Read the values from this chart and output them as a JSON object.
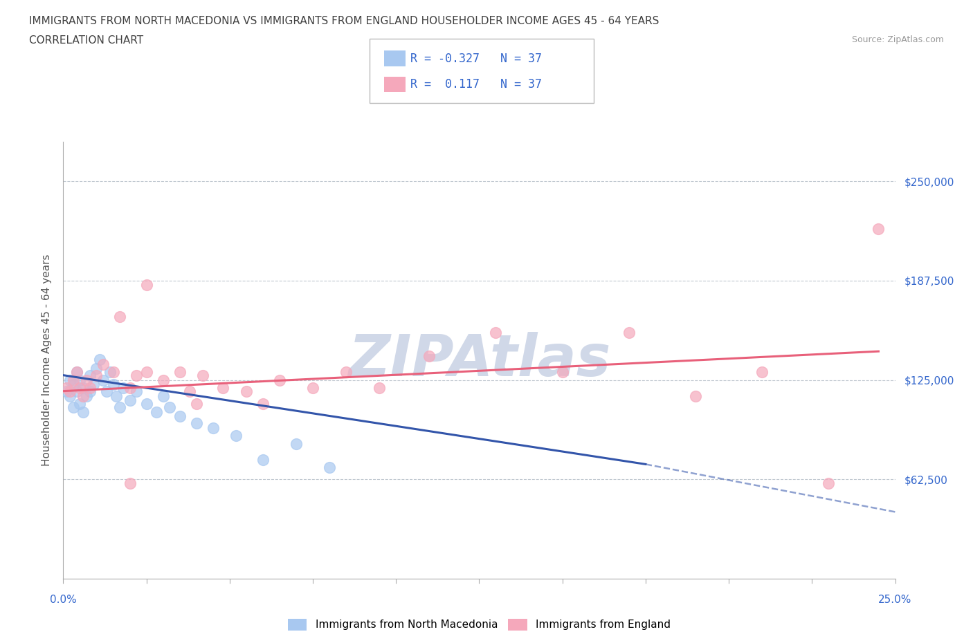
{
  "title_line1": "IMMIGRANTS FROM NORTH MACEDONIA VS IMMIGRANTS FROM ENGLAND HOUSEHOLDER INCOME AGES 45 - 64 YEARS",
  "title_line2": "CORRELATION CHART",
  "source_text": "Source: ZipAtlas.com",
  "ylabel": "Householder Income Ages 45 - 64 years",
  "xlim": [
    0.0,
    0.25
  ],
  "ylim": [
    0,
    275000
  ],
  "yticks": [
    0,
    62500,
    125000,
    187500,
    250000
  ],
  "ytick_labels": [
    "",
    "$62,500",
    "$125,000",
    "$187,500",
    "$250,000"
  ],
  "gridline_y": [
    62500,
    125000,
    187500,
    250000
  ],
  "blue_scatter_x": [
    0.001,
    0.002,
    0.002,
    0.003,
    0.003,
    0.004,
    0.004,
    0.005,
    0.005,
    0.006,
    0.006,
    0.007,
    0.008,
    0.008,
    0.009,
    0.01,
    0.011,
    0.012,
    0.013,
    0.014,
    0.015,
    0.016,
    0.017,
    0.018,
    0.02,
    0.022,
    0.025,
    0.028,
    0.03,
    0.032,
    0.035,
    0.04,
    0.045,
    0.052,
    0.06,
    0.07,
    0.08
  ],
  "blue_scatter_y": [
    118000,
    125000,
    115000,
    122000,
    108000,
    130000,
    118000,
    125000,
    110000,
    120000,
    105000,
    115000,
    128000,
    118000,
    122000,
    132000,
    138000,
    125000,
    118000,
    130000,
    122000,
    115000,
    108000,
    120000,
    112000,
    118000,
    110000,
    105000,
    115000,
    108000,
    102000,
    98000,
    95000,
    90000,
    75000,
    85000,
    70000
  ],
  "pink_scatter_x": [
    0.001,
    0.002,
    0.003,
    0.004,
    0.005,
    0.006,
    0.007,
    0.008,
    0.01,
    0.012,
    0.015,
    0.017,
    0.02,
    0.022,
    0.025,
    0.03,
    0.035,
    0.038,
    0.042,
    0.048,
    0.055,
    0.065,
    0.075,
    0.085,
    0.095,
    0.11,
    0.13,
    0.15,
    0.17,
    0.19,
    0.21,
    0.23,
    0.245,
    0.025,
    0.04,
    0.06,
    0.02
  ],
  "pink_scatter_y": [
    120000,
    118000,
    125000,
    130000,
    120000,
    115000,
    125000,
    120000,
    128000,
    135000,
    130000,
    165000,
    120000,
    128000,
    130000,
    125000,
    130000,
    118000,
    128000,
    120000,
    118000,
    125000,
    120000,
    130000,
    120000,
    140000,
    155000,
    130000,
    155000,
    115000,
    130000,
    60000,
    220000,
    185000,
    110000,
    110000,
    60000
  ],
  "blue_line_x": [
    0.0,
    0.175
  ],
  "blue_line_y": [
    128000,
    72000
  ],
  "pink_line_x": [
    0.0,
    0.245
  ],
  "pink_line_y": [
    118000,
    143000
  ],
  "blue_dash_line_x": [
    0.175,
    0.25
  ],
  "blue_dash_line_y": [
    72000,
    42000
  ],
  "blue_color": "#a8c8f0",
  "pink_color": "#f5a8bb",
  "blue_line_color": "#3355aa",
  "pink_line_color": "#e8607a",
  "title_color": "#404040",
  "source_color": "#999999",
  "axis_label_color": "#555555",
  "tick_color": "#3366cc",
  "watermark_color": "#d0d8e8",
  "R_blue": "-0.327",
  "R_pink": "0.117",
  "N_blue": "37",
  "N_pink": "37",
  "legend_label_blue": "Immigrants from North Macedonia",
  "legend_label_pink": "Immigrants from England"
}
